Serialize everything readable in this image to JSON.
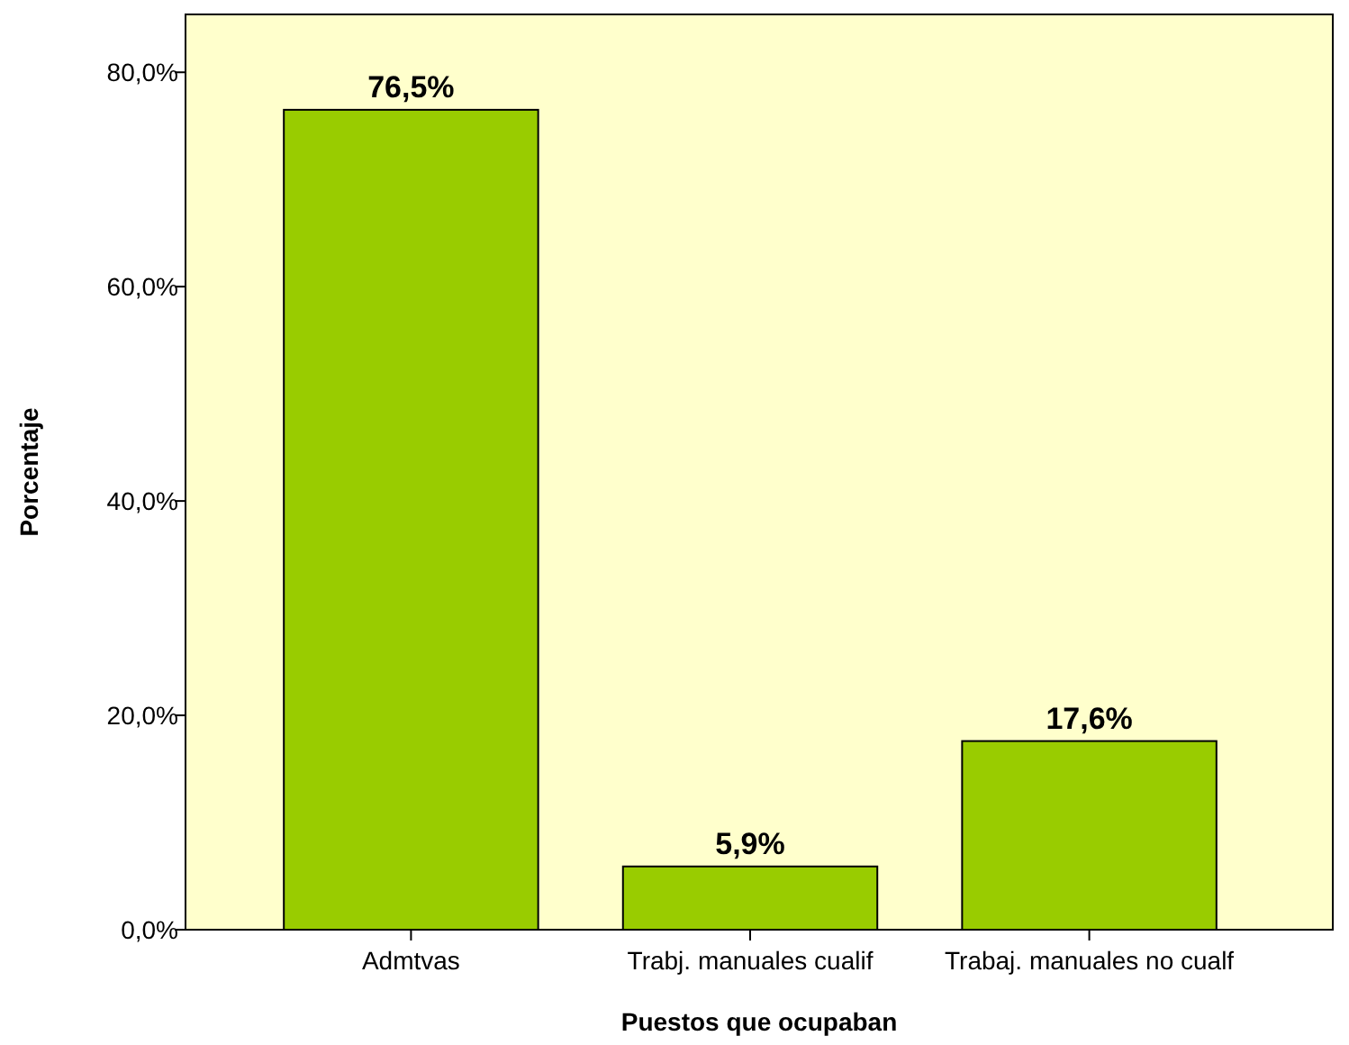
{
  "chart_data": {
    "type": "bar",
    "xlabel": "Puestos que ocupaban",
    "ylabel": "Porcentaje",
    "categories": [
      "Admtvas",
      "Trabj. manuales cualif",
      "Trabaj. manuales no cualf"
    ],
    "values": [
      76.5,
      5.9,
      17.6
    ],
    "color": "#99cc00",
    "value_labels": [
      "76,5%",
      "5,9%",
      "17,6%"
    ],
    "ylim": [
      0,
      85.4
    ],
    "yticks": [
      {
        "value": 0,
        "label": "0,0%"
      },
      {
        "value": 20,
        "label": "20,0%"
      },
      {
        "value": 40,
        "label": "40,0%"
      },
      {
        "value": 60,
        "label": "60,0%"
      },
      {
        "value": 80,
        "label": "80,0%"
      }
    ],
    "grid": false
  }
}
